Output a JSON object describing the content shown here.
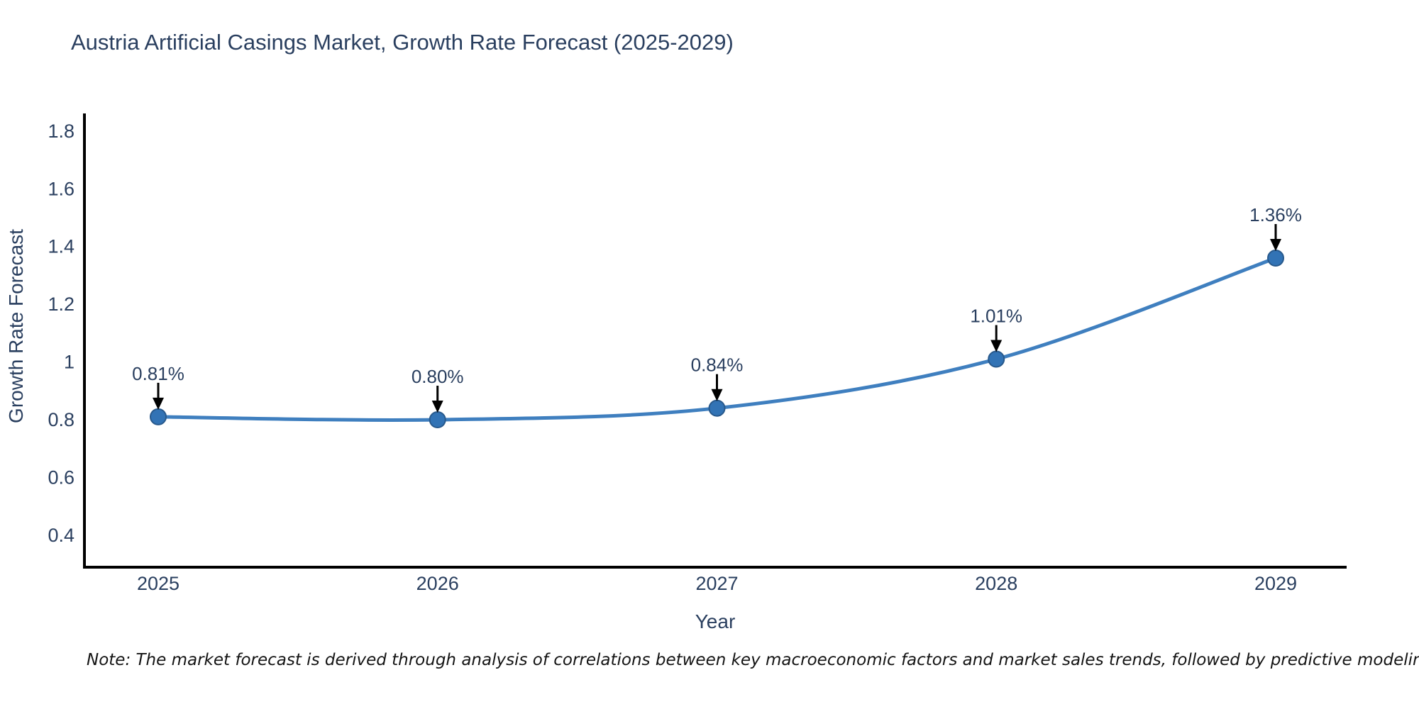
{
  "title": "Austria Artificial Casings Market, Growth Rate Forecast (2025-2029)",
  "note": "Note: The market forecast is derived through analysis of correlations between key macroeconomic factors and market sales trends, followed by predictive modeling to project future sales",
  "chart_data": {
    "type": "line",
    "title": "Austria Artificial Casings Market, Growth Rate Forecast (2025-2029)",
    "xlabel": "Year",
    "ylabel": "Growth Rate Forecast",
    "x": [
      2025,
      2026,
      2027,
      2028,
      2029
    ],
    "x_tick_labels": [
      "2025",
      "2026",
      "2027",
      "2028",
      "2029"
    ],
    "series": [
      {
        "name": "Growth Rate Forecast",
        "values": [
          0.81,
          0.8,
          0.84,
          1.01,
          1.36
        ],
        "point_labels": [
          "0.81%",
          "0.80%",
          "0.84%",
          "1.01%",
          "1.36%"
        ]
      }
    ],
    "yticks": [
      0.4,
      0.6,
      0.8,
      1,
      1.2,
      1.4,
      1.6,
      1.8
    ],
    "ytick_labels": [
      "0.4",
      "0.6",
      "0.8",
      "1",
      "1.2",
      "1.4",
      "1.6",
      "1.8"
    ],
    "xlim": [
      2024.736,
      2029.254
    ],
    "ylim": [
      0.289,
      1.861
    ],
    "grid": false,
    "legend_position": "none",
    "line_shape": "spline",
    "colors": {
      "line": "#3f7fbf",
      "marker_fill": "#3273b5",
      "marker_edge": "#28598c",
      "axis_line": "#000000",
      "text": "#2a3f5f",
      "annotation_arrow": "#000000"
    }
  }
}
